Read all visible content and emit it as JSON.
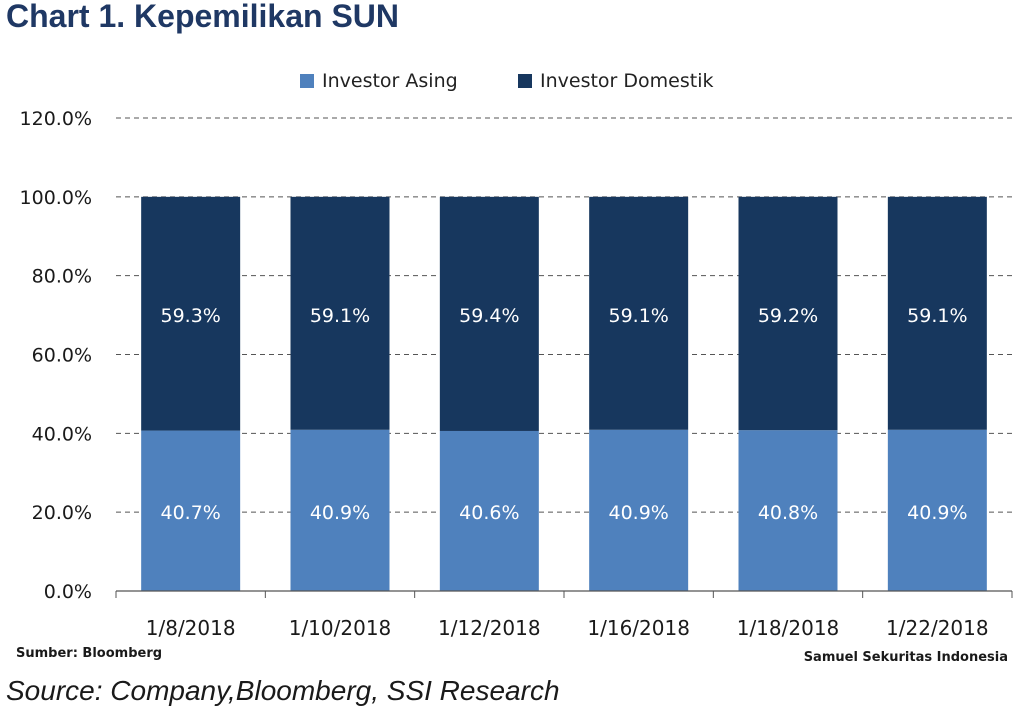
{
  "header": {
    "title": "Chart 1.  Kepemilikan SUN"
  },
  "footer": {
    "sumber": "Sumber: Bloomberg",
    "firm": "Samuel Sekuritas Indonesia",
    "source": "Source: Company,Bloomberg, SSI Research"
  },
  "colors": {
    "asing": "#4f81bd",
    "domestik": "#17375e"
  },
  "chart_data": {
    "type": "bar",
    "stacked": true,
    "categories": [
      "1/8/2018",
      "1/10/2018",
      "1/12/2018",
      "1/16/2018",
      "1/18/2018",
      "1/22/2018"
    ],
    "series": [
      {
        "name": "Investor Asing",
        "values": [
          40.7,
          40.9,
          40.6,
          40.9,
          40.8,
          40.9
        ],
        "labels": [
          "40.7%",
          "40.9%",
          "40.6%",
          "40.9%",
          "40.8%",
          "40.9%"
        ]
      },
      {
        "name": "Investor Domestik",
        "values": [
          59.3,
          59.1,
          59.4,
          59.1,
          59.2,
          59.1
        ],
        "labels": [
          "59.3%",
          "59.1%",
          "59.4%",
          "59.1%",
          "59.2%",
          "59.1%"
        ]
      }
    ],
    "yticks": [
      "0.0%",
      "20.0%",
      "40.0%",
      "60.0%",
      "80.0%",
      "100.0%",
      "120.0%"
    ],
    "ylim": [
      0,
      120
    ],
    "grid": true,
    "legend": "top-center"
  }
}
